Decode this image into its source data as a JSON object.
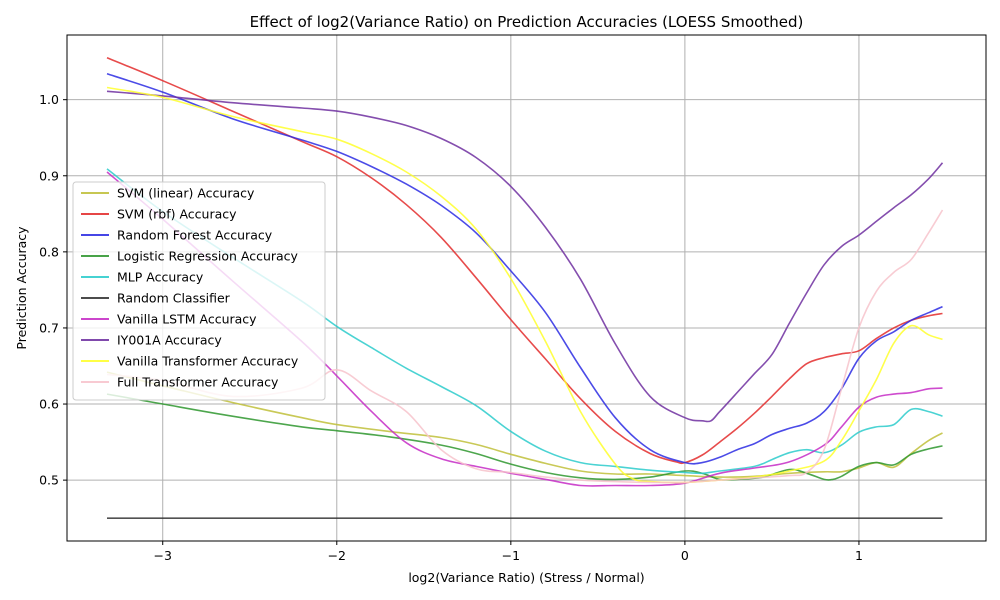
{
  "chart_data": {
    "type": "line",
    "title": "Effect of log2(Variance Ratio) on Prediction Accuracies (LOESS Smoothed)",
    "xlabel": "log2(Variance Ratio) (Stress / Normal)",
    "ylabel": "Prediction Accuracy",
    "xlim": [
      -3.55,
      1.73
    ],
    "ylim": [
      0.42,
      1.085
    ],
    "xticks": [
      -3,
      -2,
      -1,
      0,
      1
    ],
    "xtick_labels": [
      "−3",
      "−2",
      "−1",
      "0",
      "1"
    ],
    "yticks": [
      0.5,
      0.6,
      0.7,
      0.8,
      0.9,
      1.0
    ],
    "ytick_labels": [
      "0.5",
      "0.6",
      "0.7",
      "0.8",
      "0.9",
      "1.0"
    ],
    "grid": true,
    "legend_position": "center-left",
    "series": [
      {
        "name": "SVM (linear) Accuracy",
        "color": "#bfbf3a",
        "x": [
          -3.32,
          -3.0,
          -2.6,
          -2.2,
          -2.0,
          -1.7,
          -1.4,
          -1.2,
          -1.0,
          -0.8,
          -0.6,
          -0.4,
          -0.2,
          0.0,
          0.2,
          0.4,
          0.6,
          0.8,
          0.9,
          1.0,
          1.1,
          1.2,
          1.3,
          1.4,
          1.48
        ],
        "y": [
          0.642,
          0.624,
          0.602,
          0.582,
          0.573,
          0.564,
          0.556,
          0.547,
          0.534,
          0.522,
          0.512,
          0.508,
          0.508,
          0.506,
          0.504,
          0.505,
          0.509,
          0.511,
          0.511,
          0.516,
          0.523,
          0.517,
          0.535,
          0.552,
          0.562
        ]
      },
      {
        "name": "SVM (rbf) Accuracy",
        "color": "#e32b2b",
        "x": [
          -3.32,
          -3.0,
          -2.6,
          -2.2,
          -2.0,
          -1.8,
          -1.6,
          -1.4,
          -1.2,
          -1.0,
          -0.8,
          -0.6,
          -0.4,
          -0.2,
          -0.05,
          0.0,
          0.1,
          0.2,
          0.3,
          0.4,
          0.5,
          0.6,
          0.7,
          0.8,
          0.9,
          1.0,
          1.1,
          1.2,
          1.3,
          1.4,
          1.48
        ],
        "y": [
          1.055,
          1.025,
          0.985,
          0.945,
          0.925,
          0.897,
          0.862,
          0.819,
          0.766,
          0.711,
          0.659,
          0.607,
          0.564,
          0.535,
          0.524,
          0.523,
          0.533,
          0.55,
          0.568,
          0.588,
          0.61,
          0.633,
          0.653,
          0.661,
          0.666,
          0.67,
          0.686,
          0.7,
          0.71,
          0.716,
          0.719
        ]
      },
      {
        "name": "Random Forest Accuracy",
        "color": "#2b2be3",
        "x": [
          -3.32,
          -3.0,
          -2.6,
          -2.2,
          -2.0,
          -1.8,
          -1.6,
          -1.4,
          -1.2,
          -1.0,
          -0.8,
          -0.6,
          -0.4,
          -0.2,
          0.0,
          0.1,
          0.2,
          0.3,
          0.4,
          0.5,
          0.6,
          0.7,
          0.8,
          0.9,
          1.0,
          1.1,
          1.2,
          1.3,
          1.4,
          1.48
        ],
        "y": [
          1.034,
          1.01,
          0.975,
          0.947,
          0.932,
          0.912,
          0.889,
          0.861,
          0.825,
          0.775,
          0.72,
          0.648,
          0.582,
          0.54,
          0.523,
          0.523,
          0.53,
          0.54,
          0.548,
          0.56,
          0.568,
          0.575,
          0.59,
          0.62,
          0.66,
          0.683,
          0.695,
          0.71,
          0.72,
          0.728
        ]
      },
      {
        "name": "Logistic Regression Accuracy",
        "color": "#2e962e",
        "x": [
          -3.32,
          -3.0,
          -2.6,
          -2.2,
          -2.0,
          -1.7,
          -1.4,
          -1.2,
          -1.0,
          -0.8,
          -0.6,
          -0.4,
          -0.2,
          0.0,
          0.1,
          0.2,
          0.3,
          0.45,
          0.6,
          0.7,
          0.8,
          0.85,
          0.9,
          1.0,
          1.1,
          1.2,
          1.3,
          1.4,
          1.48
        ],
        "y": [
          0.613,
          0.6,
          0.584,
          0.57,
          0.565,
          0.557,
          0.546,
          0.535,
          0.521,
          0.51,
          0.503,
          0.501,
          0.504,
          0.512,
          0.509,
          0.501,
          0.501,
          0.504,
          0.514,
          0.509,
          0.501,
          0.501,
          0.505,
          0.518,
          0.523,
          0.52,
          0.534,
          0.541,
          0.545
        ]
      },
      {
        "name": "MLP Accuracy",
        "color": "#2bcbcb",
        "x": [
          -3.32,
          -3.0,
          -2.6,
          -2.2,
          -2.0,
          -1.8,
          -1.6,
          -1.4,
          -1.2,
          -1.0,
          -0.8,
          -0.6,
          -0.4,
          -0.2,
          0.0,
          0.1,
          0.2,
          0.4,
          0.5,
          0.6,
          0.7,
          0.8,
          0.9,
          1.0,
          1.1,
          1.2,
          1.3,
          1.4,
          1.48
        ],
        "y": [
          0.909,
          0.853,
          0.793,
          0.735,
          0.702,
          0.674,
          0.647,
          0.623,
          0.598,
          0.564,
          0.538,
          0.523,
          0.518,
          0.513,
          0.51,
          0.509,
          0.512,
          0.518,
          0.527,
          0.536,
          0.54,
          0.536,
          0.546,
          0.563,
          0.57,
          0.573,
          0.593,
          0.59,
          0.584
        ]
      },
      {
        "name": "Random Classifier",
        "color": "#333333",
        "x": [
          -3.32,
          1.48
        ],
        "y": [
          0.45,
          0.45
        ]
      },
      {
        "name": "Vanilla LSTM Accuracy",
        "color": "#c52bc5",
        "x": [
          -3.32,
          -3.0,
          -2.6,
          -2.2,
          -2.0,
          -1.8,
          -1.6,
          -1.4,
          -1.2,
          -1.0,
          -0.8,
          -0.6,
          -0.4,
          -0.2,
          0.0,
          0.2,
          0.4,
          0.6,
          0.8,
          0.9,
          1.0,
          1.1,
          1.2,
          1.3,
          1.4,
          1.48
        ],
        "y": [
          0.905,
          0.843,
          0.762,
          0.682,
          0.637,
          0.59,
          0.549,
          0.528,
          0.518,
          0.509,
          0.501,
          0.493,
          0.493,
          0.493,
          0.496,
          0.509,
          0.516,
          0.524,
          0.546,
          0.57,
          0.596,
          0.609,
          0.613,
          0.615,
          0.62,
          0.621
        ]
      },
      {
        "name": "IY001A Accuracy",
        "color": "#6e2fa0",
        "x": [
          -3.32,
          -3.0,
          -2.6,
          -2.2,
          -2.0,
          -1.8,
          -1.6,
          -1.4,
          -1.2,
          -1.0,
          -0.8,
          -0.6,
          -0.4,
          -0.2,
          0.0,
          0.1,
          0.15,
          0.2,
          0.3,
          0.4,
          0.5,
          0.6,
          0.7,
          0.8,
          0.9,
          1.0,
          1.1,
          1.2,
          1.3,
          1.4,
          1.48
        ],
        "y": [
          1.011,
          1.005,
          0.996,
          0.989,
          0.985,
          0.977,
          0.966,
          0.949,
          0.924,
          0.886,
          0.832,
          0.764,
          0.679,
          0.61,
          0.582,
          0.578,
          0.578,
          0.59,
          0.615,
          0.64,
          0.665,
          0.706,
          0.746,
          0.783,
          0.807,
          0.822,
          0.84,
          0.858,
          0.875,
          0.896,
          0.917
        ]
      },
      {
        "name": "Vanilla Transformer Accuracy",
        "color": "#ffff2b",
        "x": [
          -3.32,
          -3.0,
          -2.6,
          -2.2,
          -2.0,
          -1.8,
          -1.6,
          -1.4,
          -1.2,
          -1.0,
          -0.8,
          -0.6,
          -0.4,
          -0.3,
          -0.2,
          0.0,
          0.2,
          0.4,
          0.6,
          0.8,
          0.9,
          1.0,
          1.1,
          1.2,
          1.3,
          1.4,
          1.48
        ],
        "y": [
          1.016,
          1.003,
          0.978,
          0.958,
          0.948,
          0.929,
          0.905,
          0.873,
          0.83,
          0.765,
          0.682,
          0.59,
          0.521,
          0.502,
          0.498,
          0.497,
          0.5,
          0.504,
          0.512,
          0.525,
          0.552,
          0.591,
          0.632,
          0.68,
          0.703,
          0.691,
          0.685
        ]
      },
      {
        "name": "Full Transformer Accuracy",
        "color": "#f7c3cb",
        "x": [
          -3.32,
          -3.0,
          -2.6,
          -2.2,
          -2.0,
          -1.8,
          -1.6,
          -1.4,
          -1.2,
          -1.0,
          -0.8,
          -0.6,
          -0.4,
          -0.2,
          0.0,
          0.2,
          0.4,
          0.6,
          0.7,
          0.8,
          0.9,
          1.0,
          1.1,
          1.2,
          1.3,
          1.4,
          1.48
        ],
        "y": [
          0.639,
          0.631,
          0.61,
          0.621,
          0.645,
          0.617,
          0.59,
          0.54,
          0.515,
          0.51,
          0.504,
          0.5,
          0.498,
          0.497,
          0.497,
          0.5,
          0.503,
          0.506,
          0.51,
          0.54,
          0.62,
          0.7,
          0.748,
          0.773,
          0.79,
          0.825,
          0.855
        ]
      }
    ]
  }
}
